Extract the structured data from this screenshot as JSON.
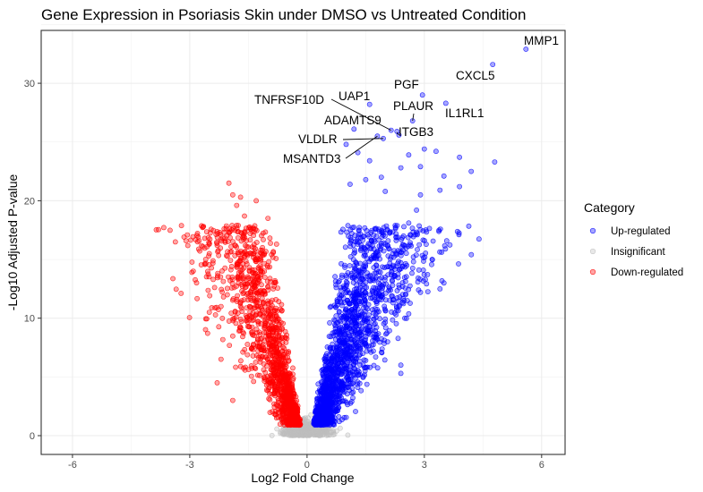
{
  "chart_data": {
    "type": "scatter",
    "title": "Gene Expression in Psoriasis Skin under DMSO vs Untreated Condition",
    "xlabel": "Log2 Fold Change",
    "ylabel": "-Log10 Adjusted P-value",
    "xlim": [
      -6.8,
      6.6
    ],
    "ylim": [
      -1.6,
      34.5
    ],
    "xticks": [
      -6,
      -3,
      0,
      3,
      6
    ],
    "yticks": [
      0,
      10,
      20,
      30
    ],
    "grid": true,
    "legend": {
      "title": "Category",
      "position": "right",
      "entries": [
        {
          "label": "Up-regulated",
          "color": "#0000ff"
        },
        {
          "label": "Insignificant",
          "color": "#bebebe"
        },
        {
          "label": "Down-regulated",
          "color": "#ff0000"
        }
      ]
    },
    "point_alpha": 0.35,
    "labeled_genes": [
      {
        "gene": "MMP1",
        "x": 5.6,
        "y": 32.9,
        "color": "#0000ff"
      },
      {
        "gene": "CXCL5",
        "x": 4.75,
        "y": 31.6,
        "color": "#0000ff"
      },
      {
        "gene": "PGF",
        "x": 2.95,
        "y": 29.0,
        "color": "#0000ff"
      },
      {
        "gene": "UAP1",
        "x": 1.6,
        "y": 28.2,
        "color": "#0000ff"
      },
      {
        "gene": "TNFRSF10D",
        "x": 2.15,
        "y": 26.0,
        "color": "#0000ff"
      },
      {
        "gene": "PLAUR",
        "x": 2.7,
        "y": 26.8,
        "color": "#0000ff"
      },
      {
        "gene": "IL1RL1",
        "x": 3.55,
        "y": 28.3,
        "color": "#0000ff"
      },
      {
        "gene": "ADAMTS9",
        "x": 2.3,
        "y": 25.9,
        "color": "#0000ff"
      },
      {
        "gene": "ITGB3",
        "x": 2.35,
        "y": 25.6,
        "color": "#0000ff"
      },
      {
        "gene": "VLDLR",
        "x": 1.95,
        "y": 25.3,
        "color": "#0000ff"
      },
      {
        "gene": "MSANTD3",
        "x": 1.8,
        "y": 25.5,
        "color": "#0000ff"
      }
    ],
    "highlighted_up_points": [
      [
        4.8,
        23.3
      ],
      [
        4.2,
        22.5
      ],
      [
        3.9,
        23.7
      ],
      [
        3.9,
        21.2
      ],
      [
        3.5,
        22.1
      ],
      [
        3.3,
        24.2
      ],
      [
        3.0,
        24.4
      ],
      [
        2.9,
        22.9
      ],
      [
        3.4,
        20.9
      ],
      [
        2.9,
        20.5
      ],
      [
        2.6,
        23.9
      ],
      [
        2.4,
        22.8
      ],
      [
        1.9,
        22.0
      ],
      [
        1.6,
        23.4
      ],
      [
        1.3,
        24.1
      ],
      [
        1.2,
        26.1
      ],
      [
        1.0,
        24.8
      ],
      [
        1.5,
        21.8
      ],
      [
        2.0,
        20.8
      ],
      [
        1.1,
        21.4
      ],
      [
        2.8,
        19.2
      ],
      [
        2.6,
        18.1
      ],
      [
        3.2,
        15.0
      ],
      [
        3.5,
        13.0
      ],
      [
        2.9,
        12.2
      ],
      [
        2.2,
        14.5
      ],
      [
        2.5,
        10.0
      ],
      [
        2.4,
        6.0
      ],
      [
        2.4,
        5.3
      ],
      [
        1.8,
        8.2
      ]
    ],
    "highlighted_down_points": [
      [
        -2.0,
        21.5
      ],
      [
        -1.9,
        20.5
      ],
      [
        -1.8,
        19.6
      ],
      [
        -1.7,
        20.3
      ],
      [
        -1.6,
        18.7
      ],
      [
        -1.3,
        20.0
      ],
      [
        -1.0,
        18.5
      ],
      [
        -2.8,
        16.5
      ],
      [
        -2.3,
        16.2
      ],
      [
        -2.5,
        15.5
      ],
      [
        -2.4,
        13.3
      ],
      [
        -2.2,
        11.0
      ],
      [
        -2.2,
        6.5
      ],
      [
        -2.3,
        4.5
      ],
      [
        -1.9,
        3.0
      ],
      [
        -2.5,
        10.5
      ]
    ],
    "bulk_distribution": {
      "up_points": 1700,
      "down_points": 1400,
      "insignificant_points": 380,
      "x_spread_per_y": 0.085,
      "y_max_bulk": 17
    }
  }
}
